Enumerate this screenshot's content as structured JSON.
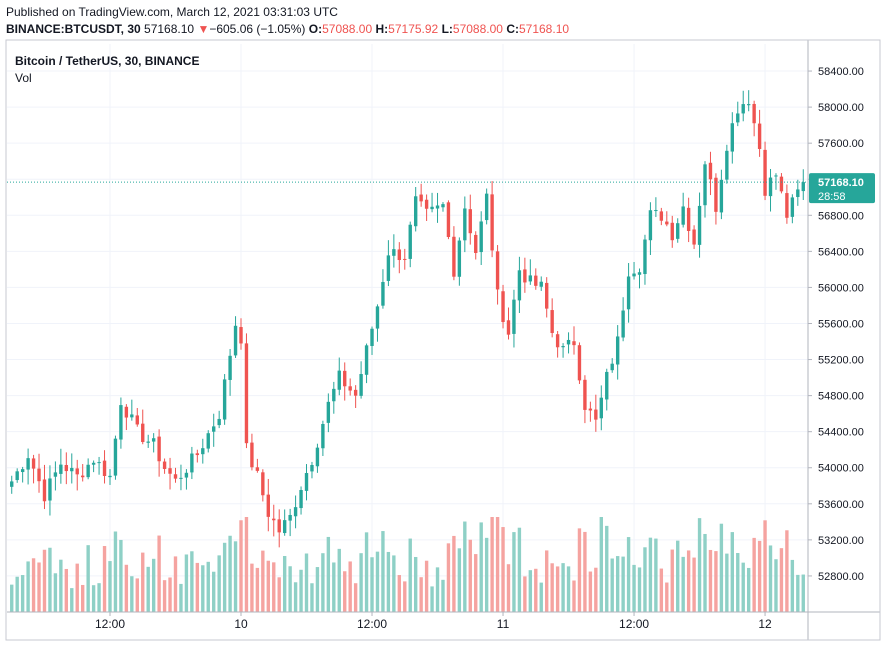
{
  "header": {
    "published": "Published on TradingView.com, March 12, 2021 03:31:03 UTC",
    "symbol": "BINANCE:BTCUSDT, 30",
    "last": "57168.10",
    "arrow": "▼",
    "change": "−605.06 (−1.05%)",
    "o_label": "O:",
    "o_value": "57088.00",
    "h_label": "H:",
    "h_value": "57175.92",
    "l_label": "L:",
    "l_value": "57088.00",
    "c_label": "C:",
    "c_value": "57168.10"
  },
  "legend": {
    "title": "Bitcoin / TetherUS, 30, BINANCE",
    "vol": "Vol"
  },
  "price_tag": {
    "price": "57168.10",
    "countdown": "28:58"
  },
  "colors": {
    "up": "#26a69a",
    "down": "#ef5350",
    "vol_up": "#8ed0c6",
    "vol_down": "#f5a3a0",
    "grid": "#f0f3fa",
    "axis": "#b2b5be"
  },
  "chart_data": {
    "type": "candlestick",
    "title": "Bitcoin / TetherUS, 30, BINANCE",
    "ylim": [
      52400,
      58700
    ],
    "yticks": [
      52800,
      53200,
      53600,
      54000,
      54400,
      54800,
      55200,
      55600,
      56000,
      56400,
      56800,
      57200,
      57600,
      58000,
      58400
    ],
    "ytick_labels": [
      "52800.00",
      "53200.00",
      "53600.00",
      "54000.00",
      "54400.00",
      "54800.00",
      "55200.00",
      "55600.00",
      "56000.00",
      "56400.00",
      "56800.00",
      "57200.00",
      "57600.00",
      "58000.00",
      "58400.00"
    ],
    "xticks": [
      {
        "label": "12:00",
        "index": 18
      },
      {
        "label": "10",
        "index": 42
      },
      {
        "label": "12:00",
        "index": 66
      },
      {
        "label": "11",
        "index": 90
      },
      {
        "label": "12:00",
        "index": 114
      },
      {
        "label": "12",
        "index": 138
      }
    ],
    "current_price": 57168.1,
    "keypoints": [
      [
        0,
        53850
      ],
      [
        3,
        54150
      ],
      [
        6,
        53700
      ],
      [
        9,
        54050
      ],
      [
        12,
        53900
      ],
      [
        15,
        54100
      ],
      [
        18,
        53900
      ],
      [
        20,
        54750
      ],
      [
        23,
        54400
      ],
      [
        26,
        54250
      ],
      [
        28,
        54000
      ],
      [
        30,
        53850
      ],
      [
        34,
        54150
      ],
      [
        38,
        54600
      ],
      [
        41,
        55600
      ],
      [
        42,
        55450
      ],
      [
        43,
        54200
      ],
      [
        45,
        53900
      ],
      [
        47,
        53500
      ],
      [
        49,
        53300
      ],
      [
        51,
        53450
      ],
      [
        53,
        53800
      ],
      [
        55,
        54100
      ],
      [
        58,
        54700
      ],
      [
        60,
        55000
      ],
      [
        63,
        54800
      ],
      [
        67,
        55800
      ],
      [
        69,
        56400
      ],
      [
        72,
        56350
      ],
      [
        74,
        56950
      ],
      [
        76,
        56800
      ],
      [
        79,
        56900
      ],
      [
        81,
        56200
      ],
      [
        83,
        56900
      ],
      [
        85,
        56400
      ],
      [
        87,
        57000
      ],
      [
        89,
        55900
      ],
      [
        91,
        55500
      ],
      [
        93,
        56200
      ],
      [
        95,
        56050
      ],
      [
        97,
        56000
      ],
      [
        99,
        55500
      ],
      [
        101,
        55300
      ],
      [
        103,
        55400
      ],
      [
        105,
        54700
      ],
      [
        107,
        54500
      ],
      [
        109,
        55000
      ],
      [
        111,
        55400
      ],
      [
        113,
        56200
      ],
      [
        115,
        56250
      ],
      [
        117,
        56800
      ],
      [
        119,
        56800
      ],
      [
        121,
        56600
      ],
      [
        123,
        56900
      ],
      [
        125,
        56500
      ],
      [
        127,
        57400
      ],
      [
        129,
        56900
      ],
      [
        131,
        57600
      ],
      [
        133,
        58000
      ],
      [
        135,
        58100
      ],
      [
        137,
        57550
      ],
      [
        138,
        57100
      ],
      [
        140,
        57250
      ],
      [
        142,
        56800
      ],
      [
        144,
        57050
      ],
      [
        145,
        57168
      ]
    ],
    "volume_max": 52000
  }
}
